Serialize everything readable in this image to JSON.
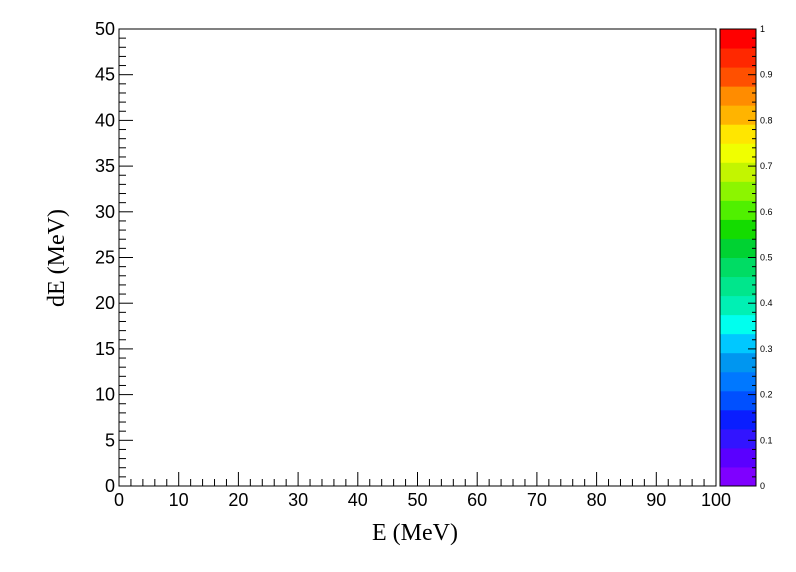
{
  "chart_data": {
    "type": "heatmap",
    "title": "",
    "xlabel": "E (MeV)",
    "ylabel": "dE (MeV)",
    "xlim": [
      0,
      100
    ],
    "ylim": [
      0,
      50
    ],
    "x_ticks": [
      "0",
      "10",
      "20",
      "30",
      "40",
      "50",
      "60",
      "70",
      "80",
      "90",
      "100"
    ],
    "y_ticks": [
      "0",
      "5",
      "10",
      "15",
      "20",
      "25",
      "30",
      "35",
      "40",
      "45",
      "50"
    ],
    "grid": false,
    "values": [],
    "color_scale": {
      "range": [
        0,
        1
      ],
      "tick_labels": [
        "0",
        "0.1",
        "0.2",
        "0.3",
        "0.4",
        "0.5",
        "0.6",
        "0.7",
        "0.8",
        "0.9",
        "1"
      ],
      "colors": [
        "#7f00ff",
        "#5a00ff",
        "#3214ff",
        "#0a1eff",
        "#0050ff",
        "#0078ff",
        "#0096f0",
        "#00c8ff",
        "#00ffee",
        "#00f0b4",
        "#00e68c",
        "#00dc64",
        "#00d232",
        "#14dc00",
        "#50f000",
        "#8cf500",
        "#c3f500",
        "#f0ff00",
        "#ffe600",
        "#ffb400",
        "#ff8c00",
        "#ff5000",
        "#ff2800",
        "#ff0000"
      ]
    }
  }
}
